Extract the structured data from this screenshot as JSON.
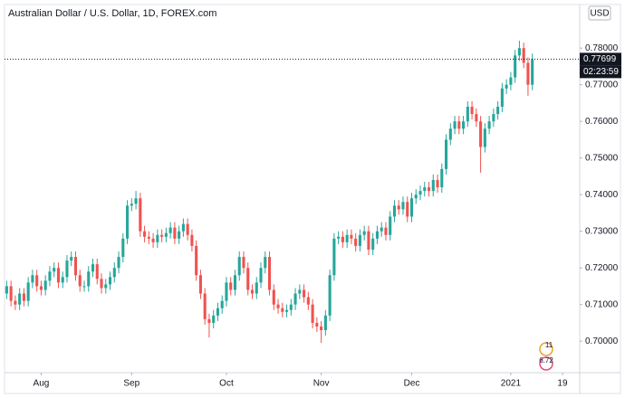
{
  "chart_data": {
    "type": "candlestick",
    "title": "Australian Dollar / U.S. Dollar, 1D, FOREX.com",
    "currency": "USD",
    "countdown": "02:23:59",
    "events": [
      "11",
      "6.72"
    ],
    "up_color": "#26a69a",
    "down_color": "#ef5350",
    "grid": false,
    "xlim": [
      -0.5,
      133
    ],
    "xticks": [
      {
        "value": 8,
        "label": "Aug"
      },
      {
        "value": 29,
        "label": "Sep"
      },
      {
        "value": 51,
        "label": "Oct"
      },
      {
        "value": 73,
        "label": "Nov"
      },
      {
        "value": 94,
        "label": "Dec"
      },
      {
        "value": 117,
        "label": "2021"
      },
      {
        "value": 129,
        "label": "19"
      }
    ],
    "ylim": [
      0.6914,
      0.7919
    ],
    "yticks": [
      {
        "value": 0.7,
        "label": "0.70000"
      },
      {
        "value": 0.71,
        "label": "0.71000"
      },
      {
        "value": 0.72,
        "label": "0.72000"
      },
      {
        "value": 0.73,
        "label": "0.73000"
      },
      {
        "value": 0.74,
        "label": "0.74000"
      },
      {
        "value": 0.75,
        "label": "0.75000"
      },
      {
        "value": 0.76,
        "label": "0.76000"
      },
      {
        "value": 0.77,
        "label": "0.77000"
      },
      {
        "value": 0.78,
        "label": "0.78000"
      }
    ],
    "open": [
      0.713,
      0.715,
      0.711,
      0.71,
      0.713,
      0.711,
      0.716,
      0.718,
      0.715,
      0.714,
      0.7165,
      0.719,
      0.72,
      0.716,
      0.7175,
      0.722,
      0.723,
      0.718,
      0.715,
      0.715,
      0.719,
      0.721,
      0.717,
      0.7145,
      0.7155,
      0.7175,
      0.72,
      0.723,
      0.728,
      0.737,
      0.7375,
      0.739,
      0.73,
      0.7285,
      0.728,
      0.727,
      0.729,
      0.7285,
      0.7295,
      0.731,
      0.728,
      0.73,
      0.732,
      0.729,
      0.726,
      0.718,
      0.713,
      0.706,
      0.705,
      0.707,
      0.709,
      0.711,
      0.716,
      0.714,
      0.718,
      0.723,
      0.72,
      0.714,
      0.713,
      0.716,
      0.72,
      0.723,
      0.714,
      0.71,
      0.709,
      0.708,
      0.7085,
      0.71,
      0.713,
      0.714,
      0.712,
      0.71,
      0.705,
      0.704,
      0.703,
      0.707,
      0.718,
      0.728,
      0.7285,
      0.727,
      0.729,
      0.728,
      0.726,
      0.729,
      0.73,
      0.725,
      0.728,
      0.73,
      0.731,
      0.729,
      0.734,
      0.737,
      0.736,
      0.738,
      0.734,
      0.739,
      0.74,
      0.741,
      0.742,
      0.741,
      0.744,
      0.742,
      0.747,
      0.755,
      0.758,
      0.76,
      0.758,
      0.76,
      0.764,
      0.762,
      0.76,
      0.753,
      0.758,
      0.76,
      0.762,
      0.764,
      0.769,
      0.77,
      0.772,
      0.778,
      0.78,
      0.776,
      0.77
    ],
    "high": [
      0.7165,
      0.7165,
      0.7125,
      0.7145,
      0.7145,
      0.7175,
      0.7195,
      0.7195,
      0.7165,
      0.718,
      0.7205,
      0.7215,
      0.7215,
      0.719,
      0.7235,
      0.7245,
      0.7245,
      0.7195,
      0.7165,
      0.7205,
      0.7225,
      0.7225,
      0.7185,
      0.717,
      0.719,
      0.7215,
      0.7245,
      0.7295,
      0.7385,
      0.739,
      0.741,
      0.7405,
      0.7315,
      0.73,
      0.7295,
      0.7305,
      0.7305,
      0.731,
      0.7325,
      0.7325,
      0.7315,
      0.7335,
      0.7335,
      0.7305,
      0.7275,
      0.7195,
      0.7145,
      0.7075,
      0.7085,
      0.7105,
      0.7125,
      0.7175,
      0.7175,
      0.7195,
      0.7245,
      0.7245,
      0.7215,
      0.7155,
      0.7175,
      0.7215,
      0.7245,
      0.7245,
      0.7155,
      0.7115,
      0.7105,
      0.71,
      0.7115,
      0.7145,
      0.7155,
      0.7155,
      0.7135,
      0.7115,
      0.7065,
      0.7055,
      0.7085,
      0.7195,
      0.7295,
      0.73,
      0.73,
      0.7305,
      0.7305,
      0.7295,
      0.7305,
      0.7315,
      0.7315,
      0.7295,
      0.7315,
      0.7325,
      0.7325,
      0.7355,
      0.7385,
      0.7385,
      0.7395,
      0.7395,
      0.7405,
      0.7415,
      0.7425,
      0.7435,
      0.7435,
      0.7455,
      0.7455,
      0.7485,
      0.7565,
      0.7595,
      0.7615,
      0.7615,
      0.7615,
      0.7655,
      0.7655,
      0.7635,
      0.7615,
      0.7595,
      0.7615,
      0.7635,
      0.7655,
      0.7705,
      0.7715,
      0.7735,
      0.7795,
      0.782,
      0.7815,
      0.7775,
      0.7785
    ],
    "low": [
      0.7115,
      0.7095,
      0.7085,
      0.7085,
      0.7095,
      0.7095,
      0.7145,
      0.7135,
      0.7125,
      0.7125,
      0.715,
      0.7175,
      0.7145,
      0.7145,
      0.716,
      0.7205,
      0.7165,
      0.7135,
      0.7135,
      0.7135,
      0.7175,
      0.7155,
      0.713,
      0.713,
      0.714,
      0.716,
      0.7185,
      0.7215,
      0.7265,
      0.7355,
      0.736,
      0.7285,
      0.727,
      0.7265,
      0.7255,
      0.7255,
      0.727,
      0.727,
      0.728,
      0.7265,
      0.7265,
      0.7285,
      0.7275,
      0.7245,
      0.7165,
      0.7115,
      0.7045,
      0.701,
      0.7035,
      0.7055,
      0.7075,
      0.7095,
      0.7125,
      0.7125,
      0.7165,
      0.7185,
      0.7125,
      0.7115,
      0.7115,
      0.7145,
      0.7185,
      0.7125,
      0.7085,
      0.7075,
      0.7065,
      0.7065,
      0.707,
      0.7085,
      0.7115,
      0.7105,
      0.7085,
      0.7035,
      0.7025,
      0.6995,
      0.7015,
      0.7055,
      0.7165,
      0.7265,
      0.7255,
      0.7255,
      0.7265,
      0.7245,
      0.7245,
      0.7275,
      0.7235,
      0.7235,
      0.7265,
      0.7285,
      0.7275,
      0.7275,
      0.7325,
      0.7345,
      0.7345,
      0.7325,
      0.7325,
      0.7375,
      0.7385,
      0.7395,
      0.7395,
      0.7395,
      0.7405,
      0.7405,
      0.7455,
      0.7535,
      0.7565,
      0.7565,
      0.7565,
      0.7585,
      0.7605,
      0.7585,
      0.746,
      0.7515,
      0.7565,
      0.7585,
      0.7605,
      0.7625,
      0.7675,
      0.7685,
      0.7705,
      0.7765,
      0.7745,
      0.767,
      0.7685
    ],
    "close": [
      0.715,
      0.711,
      0.71,
      0.713,
      0.711,
      0.716,
      0.718,
      0.715,
      0.714,
      0.7165,
      0.719,
      0.72,
      0.716,
      0.7175,
      0.722,
      0.723,
      0.718,
      0.715,
      0.715,
      0.719,
      0.721,
      0.717,
      0.7145,
      0.7155,
      0.7175,
      0.72,
      0.723,
      0.728,
      0.737,
      0.7375,
      0.739,
      0.73,
      0.7285,
      0.728,
      0.727,
      0.729,
      0.7285,
      0.7295,
      0.731,
      0.728,
      0.73,
      0.732,
      0.729,
      0.726,
      0.718,
      0.713,
      0.706,
      0.705,
      0.707,
      0.709,
      0.711,
      0.716,
      0.714,
      0.718,
      0.723,
      0.72,
      0.714,
      0.713,
      0.716,
      0.72,
      0.723,
      0.714,
      0.71,
      0.709,
      0.708,
      0.7085,
      0.71,
      0.713,
      0.714,
      0.712,
      0.71,
      0.705,
      0.704,
      0.703,
      0.707,
      0.718,
      0.728,
      0.7285,
      0.727,
      0.729,
      0.728,
      0.726,
      0.729,
      0.73,
      0.725,
      0.728,
      0.73,
      0.731,
      0.729,
      0.734,
      0.737,
      0.736,
      0.738,
      0.734,
      0.739,
      0.74,
      0.741,
      0.742,
      0.741,
      0.744,
      0.742,
      0.747,
      0.755,
      0.758,
      0.76,
      0.758,
      0.76,
      0.764,
      0.762,
      0.76,
      0.753,
      0.758,
      0.76,
      0.762,
      0.764,
      0.769,
      0.77,
      0.772,
      0.778,
      0.78,
      0.776,
      0.77,
      0.77699
    ]
  }
}
